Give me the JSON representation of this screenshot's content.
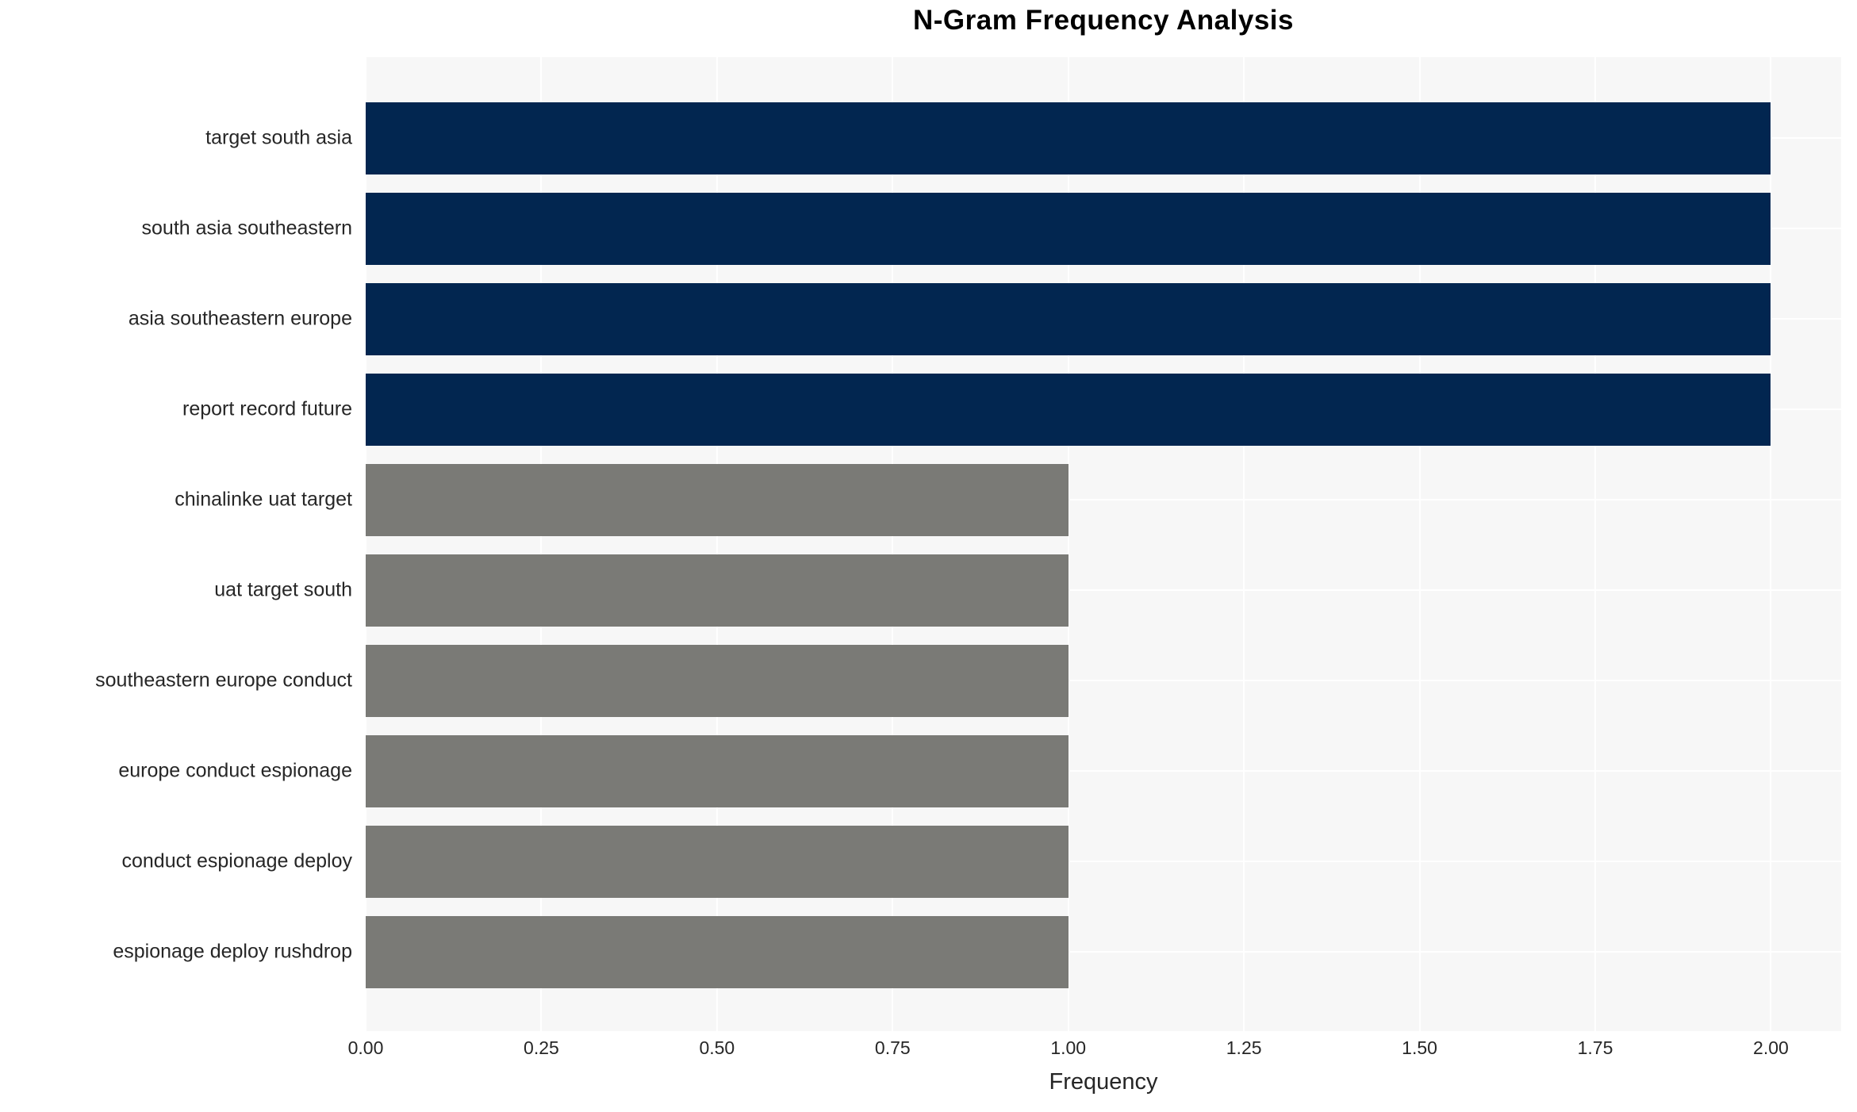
{
  "title": "N-Gram Frequency Analysis",
  "chart_data": {
    "type": "bar",
    "orientation": "horizontal",
    "title": "N-Gram Frequency Analysis",
    "xlabel": "Frequency",
    "ylabel": "",
    "categories": [
      "target south asia",
      "south asia southeastern",
      "asia southeastern europe",
      "report record future",
      "chinalinke uat target",
      "uat target south",
      "southeastern europe conduct",
      "europe conduct espionage",
      "conduct espionage deploy",
      "espionage deploy rushdrop"
    ],
    "values": [
      2,
      2,
      2,
      2,
      1,
      1,
      1,
      1,
      1,
      1
    ],
    "bar_colors": [
      "#022650",
      "#022650",
      "#022650",
      "#022650",
      "#7a7a76",
      "#7a7a76",
      "#7a7a76",
      "#7a7a76",
      "#7a7a76",
      "#7a7a76"
    ],
    "x_ticks": [
      0.0,
      0.25,
      0.5,
      0.75,
      1.0,
      1.25,
      1.5,
      1.75,
      2.0
    ],
    "x_tick_labels": [
      "0.00",
      "0.25",
      "0.50",
      "0.75",
      "1.00",
      "1.25",
      "1.50",
      "1.75",
      "2.00"
    ],
    "xlim": [
      0,
      2.1
    ],
    "grid": true,
    "legend": false,
    "colors": {
      "bar_high": "#022650",
      "bar_low": "#7a7a76",
      "plot_background": "#f7f7f7",
      "gridline": "#ffffff",
      "text": "#262626",
      "title_text": "#000000"
    }
  }
}
